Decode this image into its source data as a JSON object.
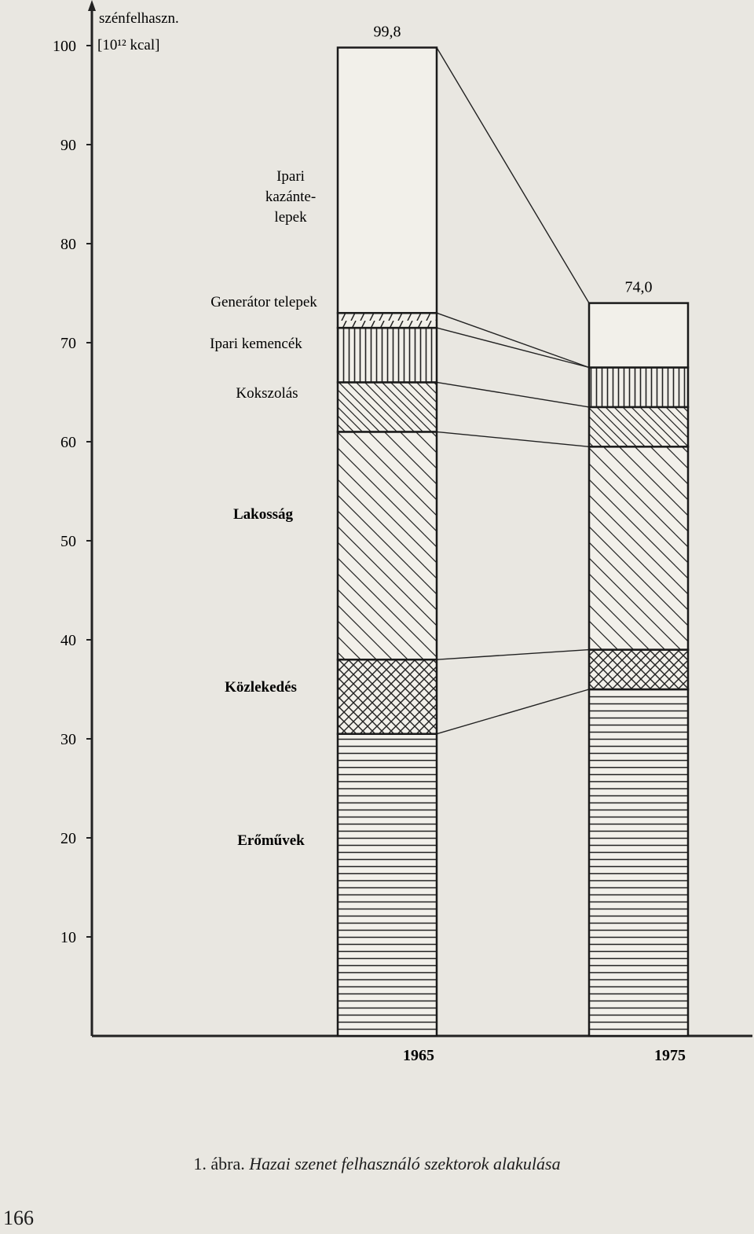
{
  "chart_data": {
    "type": "bar",
    "stacked": true,
    "ylabel": "szénfelhaszn.",
    "yunit": "[10¹² kcal]",
    "ylim": [
      0,
      100
    ],
    "yticks": [
      10,
      20,
      30,
      40,
      50,
      60,
      70,
      80,
      90,
      100
    ],
    "ytick_labels": [
      "10",
      "20",
      "30",
      "40",
      "50",
      "60",
      "70",
      "80",
      "90",
      "100"
    ],
    "categories": [
      "1965",
      "1975"
    ],
    "totals": [
      99.8,
      74.0
    ],
    "total_labels": [
      "99,8",
      "74,0"
    ],
    "series": [
      {
        "name": "Erőművek",
        "values": [
          30.5,
          35.0
        ]
      },
      {
        "name": "Közlekedés",
        "values": [
          7.5,
          4.0
        ]
      },
      {
        "name": "Lakosság",
        "values": [
          23.0,
          20.5
        ]
      },
      {
        "name": "Kokszolás",
        "values": [
          5.0,
          4.0
        ]
      },
      {
        "name": "Ipari kemencék",
        "values": [
          5.5,
          4.0
        ]
      },
      {
        "name": "Generátor telepek",
        "values": [
          1.5,
          0
        ]
      },
      {
        "name": "Ipari kazántelepek",
        "values": [
          26.8,
          6.5
        ]
      }
    ],
    "series_label_lines": [
      [
        "Erőművek"
      ],
      [
        "Közlekedés"
      ],
      [
        "Lakosság"
      ],
      [
        "Kokszolás"
      ],
      [
        "Ipari kemencék"
      ],
      [
        "Generátor telepek"
      ],
      [
        "Ipari",
        "kazánte-",
        "lepek"
      ]
    ],
    "grid": false,
    "legend": "labels left of 1965 bar"
  },
  "caption": {
    "number": "1. ábra.",
    "title": "Hazai szenet felhasználó szektorok alakulása"
  },
  "page_number": "166"
}
